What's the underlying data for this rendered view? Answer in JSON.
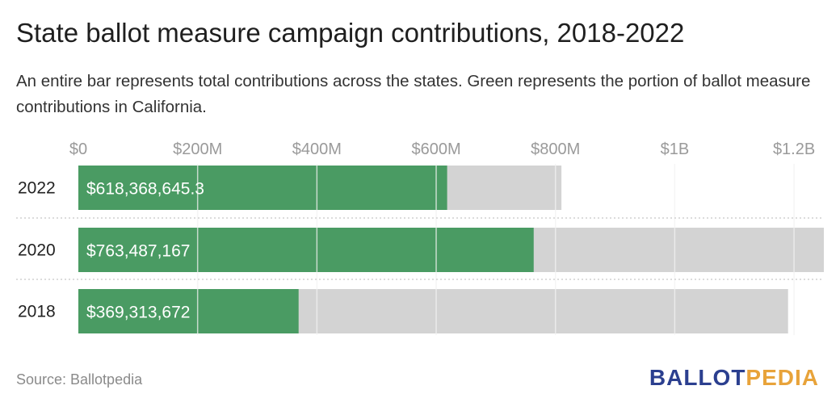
{
  "title": "State ballot measure campaign contributions, 2018-2022",
  "subtitle": "An entire bar represents total contributions across the states. Green represents the portion of ballot measure contributions in California.",
  "source": "Source: Ballotpedia",
  "logo": {
    "part1": "BALLOT",
    "part2": "PEDIA"
  },
  "colors": {
    "california": "#4a9b63",
    "total": "#d3d3d3",
    "grid": "#f2f2f2",
    "separator": "#c8c8c8"
  },
  "chart_data": {
    "type": "bar",
    "orientation": "horizontal",
    "stacked": "overlay",
    "categories": [
      "2022",
      "2020",
      "2018"
    ],
    "series": [
      {
        "name": "California",
        "values": [
          618368645.3,
          763487167,
          369313672
        ],
        "labels": [
          "$618,368,645.3",
          "$763,487,167",
          "$369,313,672"
        ]
      },
      {
        "name": "Total",
        "values": [
          810000000,
          1250000000,
          1190000000
        ]
      }
    ],
    "xlim": [
      0,
      1250000000
    ],
    "xticks": [
      0,
      200000000,
      400000000,
      600000000,
      800000000,
      1000000000,
      1200000000
    ],
    "xtick_labels": [
      "$0",
      "$200M",
      "$400M",
      "$600M",
      "$800M",
      "$1B",
      "$1.2B"
    ],
    "grid": true
  }
}
